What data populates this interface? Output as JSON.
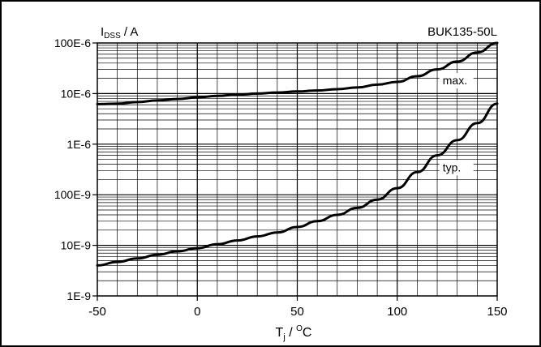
{
  "chart_data": {
    "type": "line",
    "part_number": "BUK135-50L",
    "ylabel": {
      "main": "I",
      "sub": "DSS",
      "rest": " / A"
    },
    "xlabel": {
      "main": "T",
      "sub": "j",
      "slash": " / ",
      "sup": "O",
      "unit": "C"
    },
    "xlim": [
      -50,
      150
    ],
    "ylim": [
      1e-09,
      0.0001
    ],
    "y_scale": "log",
    "grid": true,
    "x_ticks": [
      -50,
      0,
      50,
      100,
      150
    ],
    "x_tick_labels": [
      "-50",
      "0",
      "50",
      "100",
      "150"
    ],
    "y_ticks": [
      1e-09,
      1e-08,
      1e-07,
      1e-06,
      1e-05,
      0.0001
    ],
    "y_tick_labels": [
      "1E-9",
      "10E-9",
      "100E-9",
      "1E-6",
      "10E-6",
      "100E-6"
    ],
    "series": [
      {
        "name": "max.",
        "x": [
          -50,
          -40,
          -30,
          -20,
          -10,
          0,
          10,
          20,
          30,
          40,
          50,
          60,
          70,
          80,
          90,
          100,
          110,
          120,
          130,
          140,
          150
        ],
        "y": [
          6.2e-06,
          6.3e-06,
          6.8e-06,
          7.3e-06,
          7.8e-06,
          8.4e-06,
          9e-06,
          9.5e-06,
          1e-05,
          1.05e-05,
          1.1e-05,
          1.15e-05,
          1.22e-05,
          1.32e-05,
          1.5e-05,
          1.7e-05,
          2.2e-05,
          3e-05,
          4.3e-05,
          6.5e-05,
          0.0001
        ]
      },
      {
        "name": "typ.",
        "x": [
          -50,
          -40,
          -30,
          -20,
          -10,
          0,
          10,
          20,
          30,
          40,
          50,
          60,
          70,
          80,
          90,
          100,
          110,
          120,
          130,
          140,
          150
        ],
        "y": [
          4e-09,
          4.7e-09,
          5.5e-09,
          6.5e-09,
          7.6e-09,
          8.8e-09,
          1.05e-08,
          1.25e-08,
          1.5e-08,
          1.8e-08,
          2.3e-08,
          3e-08,
          4e-08,
          5.5e-08,
          8e-08,
          1.35e-07,
          2.8e-07,
          6e-07,
          1.2e-06,
          2.6e-06,
          6.3e-06
        ]
      }
    ],
    "annotations": [
      "max.",
      "typ."
    ]
  }
}
